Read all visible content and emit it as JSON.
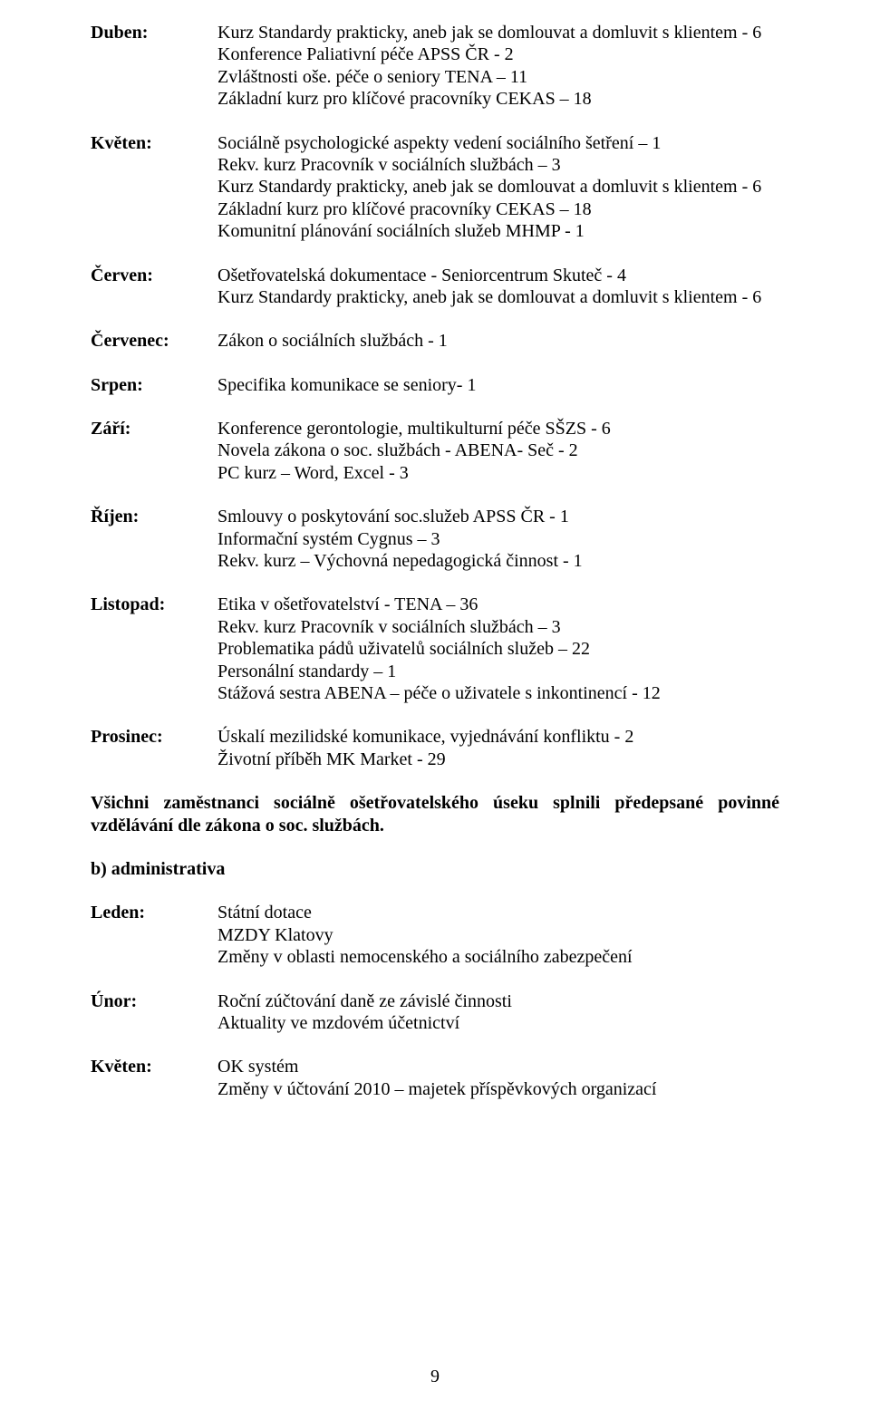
{
  "sections_a": [
    {
      "month": "Duben:",
      "lines": [
        "Kurz Standardy prakticky, aneb jak se domlouvat a domluvit s klientem - 6",
        "Konference Paliativní péče APSS ČR - 2",
        "Zvláštnosti oše. péče o seniory TENA – 11",
        "Základní kurz pro klíčové pracovníky CEKAS – 18"
      ]
    },
    {
      "month": "Květen:",
      "lines": [
        "Sociálně psychologické aspekty vedení sociálního šetření – 1",
        "Rekv. kurz  Pracovník v sociálních službách – 3",
        "Kurz Standardy prakticky, aneb jak se domlouvat a domluvit s klientem - 6",
        "Základní kurz pro klíčové pracovníky CEKAS – 18",
        "Komunitní plánování sociálních služeb MHMP - 1"
      ]
    },
    {
      "month": "Červen:",
      "lines": [
        "Ošetřovatelská dokumentace - Seniorcentrum Skuteč - 4",
        "Kurz Standardy prakticky, aneb jak se domlouvat a domluvit s klientem - 6"
      ]
    },
    {
      "month": "Červenec:",
      "lines": [
        "Zákon o sociálních službách - 1"
      ]
    },
    {
      "month": "Srpen:",
      "lines": [
        "Specifika komunikace se seniory- 1"
      ]
    },
    {
      "month": "Září:",
      "lines": [
        "Konference gerontologie, multikulturní péče SŠZS - 6",
        "Novela zákona o soc. službách - ABENA- Seč - 2",
        "PC kurz – Word, Excel - 3"
      ]
    },
    {
      "month": "Říjen:",
      "lines": [
        "Smlouvy o poskytování soc.služeb APSS ČR - 1",
        "Informační systém Cygnus – 3",
        "Rekv. kurz – Výchovná nepedagogická činnost - 1"
      ]
    },
    {
      "month": "Listopad:",
      "lines": [
        "Etika v ošetřovatelství - TENA – 36",
        "Rekv. kurz  Pracovník v sociálních službách – 3",
        "Problematika pádů uživatelů sociálních služeb – 22",
        "Personální standardy – 1",
        "Stážová sestra ABENA – péče o uživatele s inkontinencí - 12"
      ]
    },
    {
      "month": "Prosinec:",
      "lines": [
        "Úskalí mezilidské komunikace, vyjednávání konfliktu - 2",
        "Životní příběh MK Market - 29"
      ]
    }
  ],
  "full_para": "Všichni zaměstnanci sociálně ošetřovatelského úseku splnili předepsané povinné vzdělávání dle zákona o soc. službách.",
  "subhead_b": "b) administrativa",
  "sections_b": [
    {
      "month": "Leden:",
      "lines": [
        "Státní dotace",
        "MZDY Klatovy",
        "Změny v oblasti nemocenského a sociálního zabezpečení"
      ]
    },
    {
      "month": "Únor:",
      "lines": [
        "Roční zúčtování daně ze závislé činnosti",
        "Aktuality ve mzdovém účetnictví"
      ]
    },
    {
      "month": "Květen:",
      "lines": [
        "OK systém",
        "Změny v účtování 2010 – majetek příspěvkových organizací"
      ]
    }
  ],
  "page_number": "9"
}
